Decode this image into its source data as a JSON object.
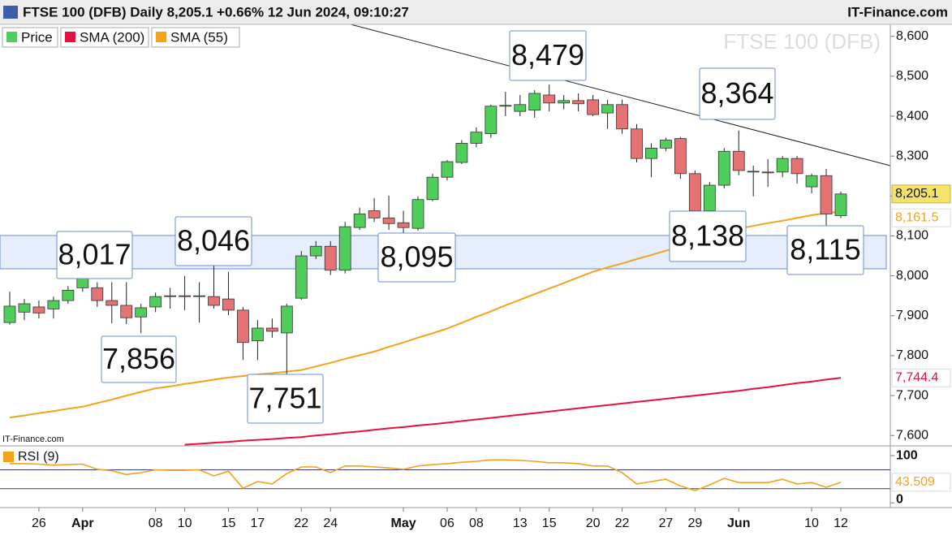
{
  "chart_data": [
    {
      "type": "candlestick",
      "title": "FTSE 100 (DFB) Daily 8,205.1 +0.66% 12 Jun 2024, 09:10:27",
      "source": "IT-Finance.com",
      "watermark": "FTSE 100 (DFB)",
      "credit": "IT-Finance.com",
      "categories": [
        null,
        null,
        "26",
        null,
        null,
        "Apr",
        null,
        null,
        null,
        null,
        "08",
        null,
        "10",
        null,
        null,
        "15",
        null,
        "17",
        null,
        null,
        "22",
        null,
        "24",
        null,
        null,
        null,
        null,
        "May",
        null,
        null,
        "06",
        null,
        "08",
        null,
        null,
        "13",
        null,
        "15",
        null,
        null,
        "20",
        null,
        "22",
        null,
        null,
        "27",
        null,
        "29",
        null,
        null,
        "Jun",
        null,
        null,
        null,
        null,
        "10",
        null,
        "12"
      ],
      "price": {
        "name": "Price",
        "color": "#4fcf5a",
        "down_color": "#e57373",
        "last_label": "8,205.1",
        "open": [
          7883,
          7909,
          7922,
          7917,
          7938,
          7970,
          7970,
          7938,
          7926,
          7897,
          7922,
          7948,
          7950,
          7948,
          7948,
          7942,
          7914,
          7837,
          7869,
          7857,
          7944,
          8050,
          8074,
          8014,
          8121,
          8163,
          8145,
          8133,
          8119,
          8191,
          8247,
          8284,
          8332,
          8356,
          8425,
          8412,
          8415,
          8453,
          8433,
          8439,
          8441,
          8408,
          8429,
          8368,
          8294,
          8320,
          8344,
          8256,
          8163,
          8227,
          8312,
          8262,
          8260,
          8260,
          8294,
          8223,
          8251,
          8151
        ],
        "high": [
          7960,
          7942,
          7938,
          7948,
          7974,
          8017,
          7984,
          7984,
          7984,
          7930,
          7958,
          7970,
          8000,
          7984,
          8046,
          8010,
          7922,
          7889,
          7893,
          7930,
          8062,
          8087,
          8087,
          8135,
          8171,
          8195,
          8201,
          8163,
          8199,
          8256,
          8290,
          8340,
          8372,
          8429,
          8461,
          8453,
          8465,
          8479,
          8453,
          8457,
          8453,
          8441,
          8441,
          8380,
          8332,
          8346,
          8348,
          8264,
          8235,
          8320,
          8364,
          8276,
          8292,
          8300,
          8300,
          8256,
          8268,
          8211
        ],
        "low": [
          7878,
          7889,
          7893,
          7893,
          7930,
          7960,
          7922,
          7881,
          7879,
          7856,
          7909,
          7918,
          7914,
          7883,
          7918,
          7901,
          7789,
          7789,
          7845,
          7751,
          7940,
          8042,
          8002,
          8006,
          8115,
          8135,
          8115,
          8095,
          8113,
          8187,
          8239,
          8280,
          8322,
          8346,
          8400,
          8400,
          8396,
          8412,
          8417,
          8412,
          8400,
          8368,
          8356,
          8284,
          8247,
          8312,
          8243,
          8138,
          8155,
          8219,
          8252,
          8199,
          8223,
          8247,
          8231,
          8207,
          8115,
          8145
        ],
        "close": [
          7924,
          7930,
          7907,
          7938,
          7964,
          7994,
          7938,
          7926,
          7895,
          7920,
          7948,
          7950,
          7948,
          7950,
          7926,
          7914,
          7833,
          7869,
          7861,
          7924,
          8050,
          8074,
          8014,
          8123,
          8155,
          8145,
          8131,
          8121,
          8191,
          8247,
          8286,
          8332,
          8360,
          8425,
          8427,
          8429,
          8457,
          8433,
          8439,
          8431,
          8404,
          8429,
          8368,
          8294,
          8320,
          8340,
          8256,
          8163,
          8227,
          8312,
          8264,
          8260,
          8258,
          8294,
          8256,
          8251,
          8155,
          8205.1
        ]
      },
      "series": [
        {
          "name": "SMA (200)",
          "color": "#e8103c",
          "last_label": "7,744.4",
          "values": [
            null,
            null,
            null,
            null,
            null,
            null,
            null,
            null,
            null,
            null,
            null,
            null,
            7577,
            7579,
            7582,
            7584,
            7587,
            7589,
            7591,
            7594,
            7596,
            7600,
            7603,
            7607,
            7610,
            7614,
            7618,
            7621,
            7625,
            7628,
            7632,
            7636,
            7640,
            7644,
            7648,
            7652,
            7656,
            7660,
            7664,
            7668,
            7672,
            7676,
            7680,
            7684,
            7688,
            7692,
            7696,
            7700,
            7704,
            7708,
            7712,
            7717,
            7721,
            7726,
            7731,
            7735,
            7740,
            7744.4
          ]
        },
        {
          "name": "SMA (55)",
          "color": "#f5a21b",
          "last_label": "8,161.5",
          "values": [
            7645,
            7650,
            7656,
            7661,
            7667,
            7672,
            7681,
            7690,
            7700,
            7709,
            7718,
            7723,
            7729,
            7734,
            7740,
            7745,
            7749,
            7753,
            7756,
            7760,
            7764,
            7773,
            7782,
            7792,
            7801,
            7810,
            7822,
            7833,
            7845,
            7856,
            7868,
            7882,
            7897,
            7911,
            7926,
            7940,
            7954,
            7968,
            7982,
            7996,
            8010,
            8021,
            8031,
            8042,
            8052,
            8063,
            8074,
            8085,
            8096,
            8107,
            8118,
            8125,
            8132,
            8138,
            8145,
            8152,
            8157,
            8161.5
          ]
        }
      ],
      "annotations": [
        "8,017",
        "7,856",
        "8,046",
        "7,751",
        "8,095",
        "8,479",
        "8,364",
        "8,138",
        "8,115"
      ],
      "ylim": [
        7576,
        8630
      ],
      "yticks": [
        {
          "value": 7600,
          "label": "7,600"
        },
        {
          "value": 7700,
          "label": "7,700"
        },
        {
          "value": 7800,
          "label": "7,800"
        },
        {
          "value": 7900,
          "label": "7,900"
        },
        {
          "value": 8000,
          "label": "8,000"
        },
        {
          "value": 8100,
          "label": "8,100"
        },
        {
          "value": 8200,
          "label": "8,200"
        },
        {
          "value": 8300,
          "label": "8,300"
        },
        {
          "value": 8400,
          "label": "8,400"
        },
        {
          "value": 8500,
          "label": "8,500"
        },
        {
          "value": 8600,
          "label": "8,600"
        }
      ]
    },
    {
      "type": "line",
      "series": [
        {
          "name": "RSI (9)",
          "color": "#f5a21b",
          "last_label": "43.509",
          "values": [
            83,
            83,
            82,
            80,
            81,
            82,
            71,
            68,
            60,
            64,
            70,
            69,
            69,
            70,
            57,
            67,
            31,
            45,
            40,
            62,
            76,
            76,
            64,
            78,
            78,
            76,
            74,
            71,
            78,
            81,
            83,
            86,
            88,
            91,
            91,
            90,
            88,
            85,
            85,
            83,
            78,
            78,
            64,
            40,
            45,
            50,
            36,
            26,
            38,
            52,
            43,
            43,
            43,
            50,
            40,
            43,
            33,
            43.509
          ]
        }
      ],
      "levels": [
        70,
        30
      ],
      "ylim": [
        -10,
        119
      ],
      "yticks": [
        100,
        0
      ]
    }
  ]
}
